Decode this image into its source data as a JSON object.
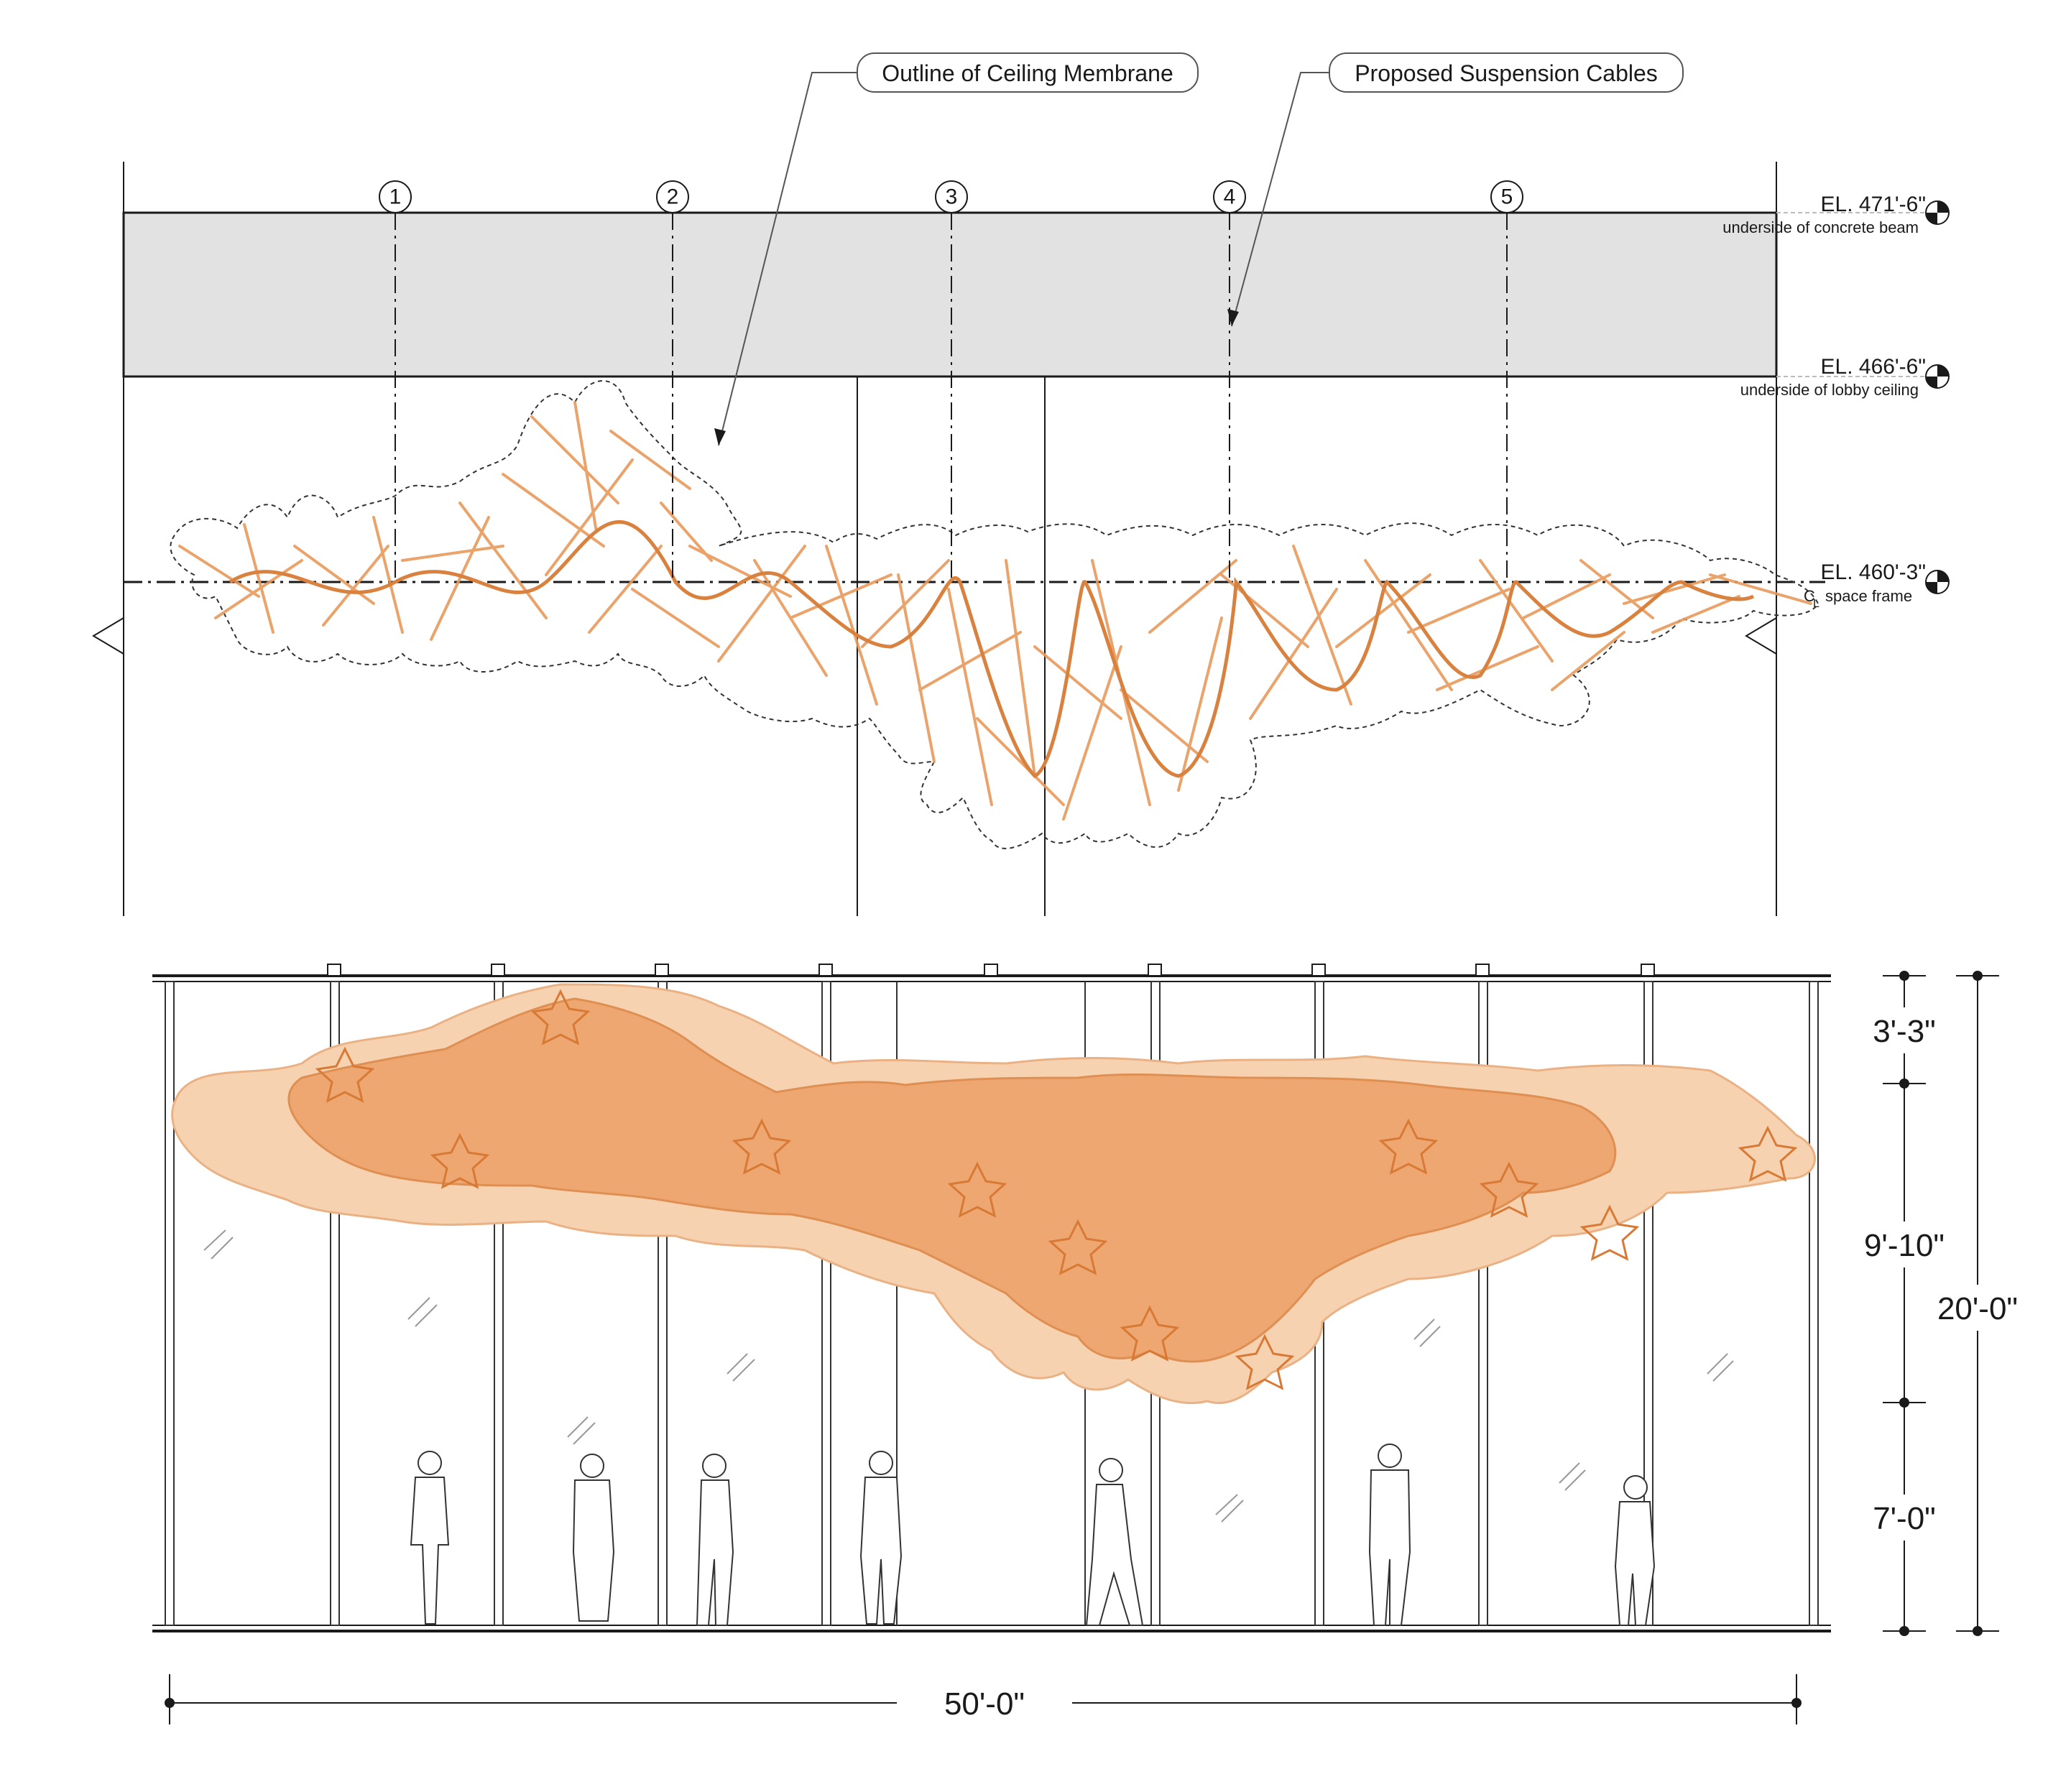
{
  "callouts": {
    "membrane": "Outline of Ceiling Membrane",
    "cables": "Proposed Suspension Cables"
  },
  "grid_lines": [
    "1",
    "2",
    "3",
    "4",
    "5"
  ],
  "levels": {
    "beam": {
      "elevation": "EL. 471'-6\"",
      "note": "underside of concrete beam"
    },
    "ceiling": {
      "elevation": "EL. 466'-6\"",
      "note": "underside of lobby ceiling"
    },
    "frame": {
      "elevation": "EL. 460'-3\"",
      "note_mark": "C",
      "note_sub": "L",
      "note": "space frame"
    }
  },
  "dimensions": {
    "top_gap": "3'-3\"",
    "installation": "9'-10\"",
    "clearance": "7'-0\"",
    "total_height": "20'-0\"",
    "width": "50'-0\""
  },
  "colors": {
    "accent": "#e08a48",
    "accent_light": "#f3c59c",
    "beam_fill": "#e2e2e2",
    "line": "#1a1a1a"
  }
}
